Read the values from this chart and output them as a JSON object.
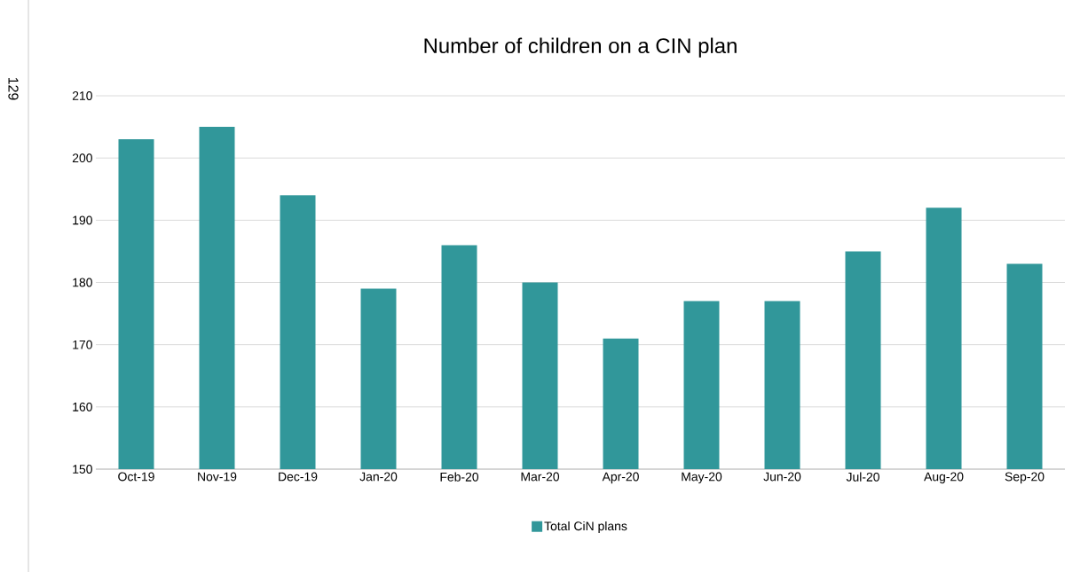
{
  "chart_data": {
    "type": "bar",
    "title": "Number of children on a CIN plan",
    "categories": [
      "Oct-19",
      "Nov-19",
      "Dec-19",
      "Jan-20",
      "Feb-20",
      "Mar-20",
      "Apr-20",
      "May-20",
      "Jun-20",
      "Jul-20",
      "Aug-20",
      "Sep-20"
    ],
    "series": [
      {
        "name": "Total CiN plans",
        "color": "#31979a",
        "values": [
          203,
          205,
          194,
          179,
          186,
          180,
          171,
          177,
          177,
          185,
          192,
          183
        ]
      }
    ],
    "ylim": [
      150,
      210
    ],
    "yticks": [
      150,
      160,
      170,
      180,
      190,
      200,
      210
    ],
    "grid": "y",
    "legend": "bottom",
    "annotations": [
      "129"
    ]
  }
}
